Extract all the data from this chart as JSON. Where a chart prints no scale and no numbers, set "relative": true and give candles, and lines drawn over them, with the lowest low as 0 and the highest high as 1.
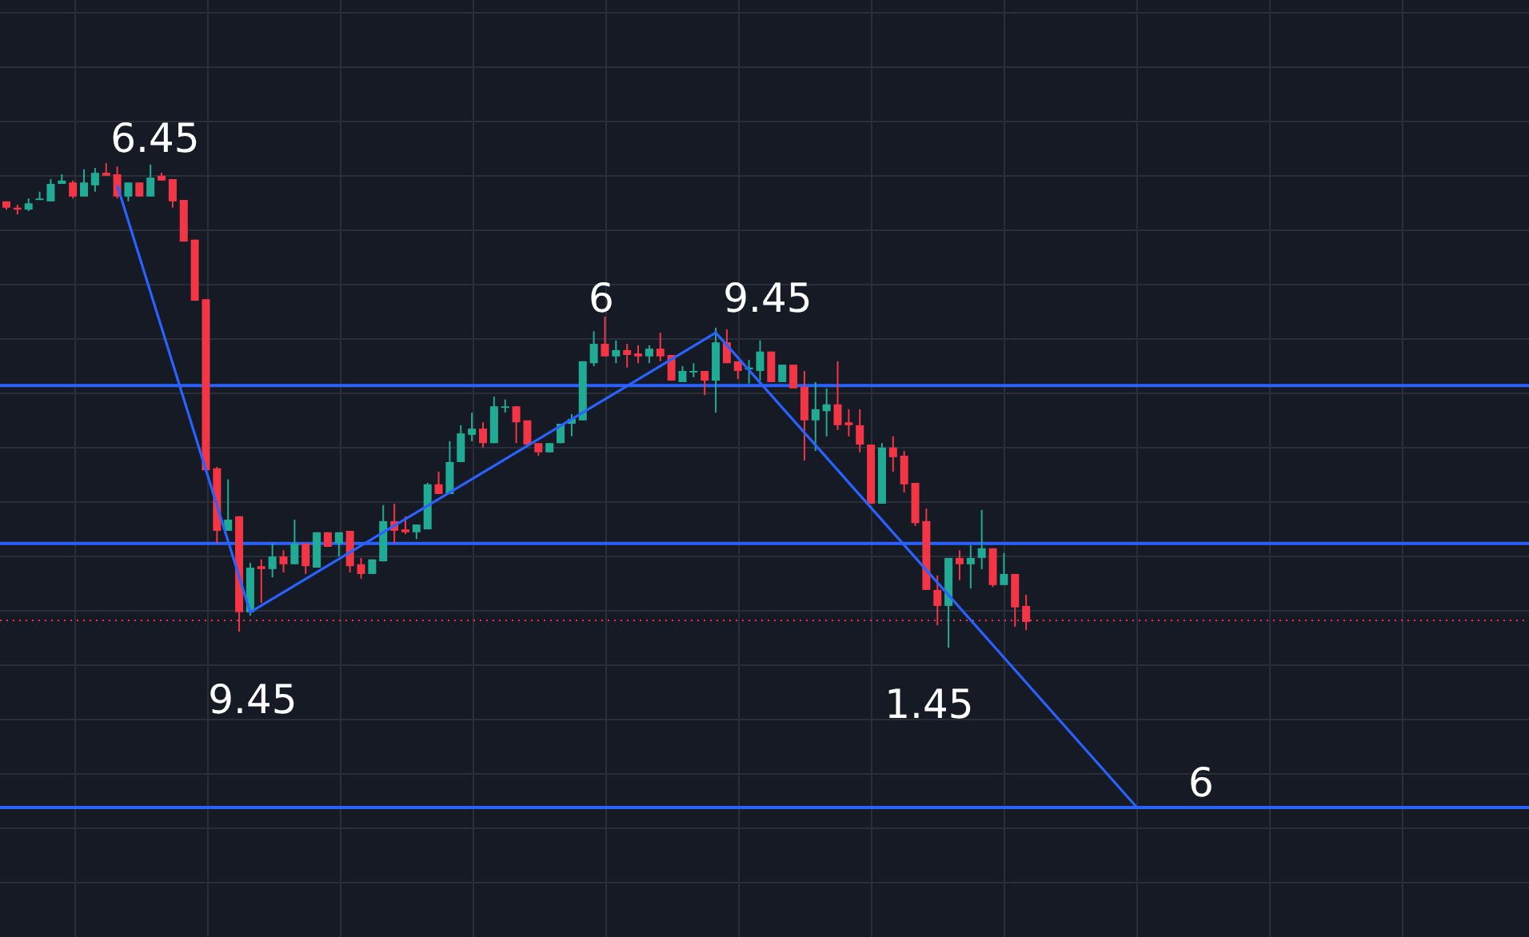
{
  "chart_data": {
    "type": "candlestick",
    "relative": true,
    "grid": true,
    "categories": [
      null,
      null,
      null,
      null,
      null,
      null,
      null,
      null,
      null,
      null,
      null,
      null,
      null,
      null,
      null,
      null,
      null,
      null,
      null,
      null,
      null,
      null,
      null,
      null,
      null,
      null,
      null,
      null,
      null,
      null,
      null,
      null,
      null,
      null,
      null,
      null,
      null,
      null,
      null,
      null,
      null,
      null,
      null,
      null,
      null,
      null,
      null,
      null,
      null,
      null,
      null,
      null,
      null,
      null,
      null,
      null,
      null,
      null,
      null,
      null,
      null,
      null,
      null,
      null,
      null,
      null,
      null,
      null,
      null,
      null,
      null,
      null,
      null,
      null,
      null,
      null,
      null,
      null,
      null,
      null,
      null,
      null,
      null,
      null,
      null,
      null,
      null,
      null,
      null,
      null,
      null,
      null,
      null,
      null,
      null,
      null,
      null,
      null,
      null,
      null,
      null,
      null,
      null,
      null,
      null,
      null,
      null,
      null,
      null,
      null,
      null,
      null,
      null,
      null,
      null,
      null,
      null,
      null,
      null,
      null,
      null,
      null,
      null,
      null,
      null,
      null,
      null,
      null,
      null,
      null,
      null,
      null,
      null,
      null,
      null,
      null,
      null
    ],
    "ohlc": [
      [
        0.921,
        0.921,
        0.904,
        0.908
      ],
      [
        0.908,
        0.914,
        0.894,
        0.904
      ],
      [
        0.904,
        0.927,
        0.901,
        0.917
      ],
      [
        0.924,
        0.941,
        0.924,
        0.927
      ],
      [
        0.921,
        0.967,
        0.921,
        0.957
      ],
      [
        0.957,
        0.977,
        0.957,
        0.964
      ],
      [
        0.96,
        0.964,
        0.927,
        0.931
      ],
      [
        0.931,
        0.987,
        0.931,
        0.96
      ],
      [
        0.954,
        0.99,
        0.941,
        0.98
      ],
      [
        0.98,
        1,
        0.974,
        0.974
      ],
      [
        0.977,
        0.993,
        0.927,
        0.931
      ],
      [
        0.931,
        0.96,
        0.921,
        0.96
      ],
      [
        0.96,
        0.96,
        0.931,
        0.931
      ],
      [
        0.931,
        0.997,
        0.931,
        0.97
      ],
      [
        0.974,
        0.98,
        0.964,
        0.964
      ],
      [
        0.967,
        0.967,
        0.908,
        0.921
      ],
      [
        0.924,
        0.924,
        0.838,
        0.838
      ],
      [
        0.842,
        0.842,
        0.716,
        0.716
      ],
      [
        0.719,
        0.719,
        0.366,
        0.366
      ],
      [
        0.37,
        0.373,
        0.215,
        0.241
      ],
      [
        0.241,
        0.347,
        0.241,
        0.264
      ],
      [
        0.271,
        0.271,
        0.033,
        0.073
      ],
      [
        0.073,
        0.175,
        0.066,
        0.165
      ],
      [
        0.168,
        0.182,
        0.092,
        0.162
      ],
      [
        0.162,
        0.215,
        0.145,
        0.188
      ],
      [
        0.188,
        0.201,
        0.155,
        0.172
      ],
      [
        0.172,
        0.264,
        0.172,
        0.215
      ],
      [
        0.215,
        0.215,
        0.152,
        0.168
      ],
      [
        0.165,
        0.238,
        0.165,
        0.238
      ],
      [
        0.238,
        0.238,
        0.208,
        0.208
      ],
      [
        0.215,
        0.238,
        0.188,
        0.238
      ],
      [
        0.241,
        0.241,
        0.155,
        0.168
      ],
      [
        0.172,
        0.185,
        0.142,
        0.152
      ],
      [
        0.152,
        0.182,
        0.152,
        0.182
      ],
      [
        0.178,
        0.294,
        0.178,
        0.261
      ],
      [
        0.261,
        0.297,
        0.215,
        0.241
      ],
      [
        0.244,
        0.271,
        0.234,
        0.238
      ],
      [
        0.238,
        0.254,
        0.224,
        0.254
      ],
      [
        0.244,
        0.34,
        0.244,
        0.337
      ],
      [
        0.337,
        0.363,
        0.317,
        0.317
      ],
      [
        0.317,
        0.426,
        0.317,
        0.383
      ],
      [
        0.383,
        0.459,
        0.383,
        0.442
      ],
      [
        0.439,
        0.485,
        0.426,
        0.452
      ],
      [
        0.452,
        0.465,
        0.413,
        0.422
      ],
      [
        0.422,
        0.518,
        0.422,
        0.498
      ],
      [
        0.495,
        0.512,
        0.485,
        0.498
      ],
      [
        0.498,
        0.498,
        0.422,
        0.465
      ],
      [
        0.469,
        0.469,
        0.419,
        0.419
      ],
      [
        0.422,
        0.422,
        0.396,
        0.403
      ],
      [
        0.403,
        0.422,
        0.403,
        0.422
      ],
      [
        0.422,
        0.462,
        0.422,
        0.462
      ],
      [
        0.462,
        0.482,
        0.436,
        0.472
      ],
      [
        0.469,
        0.591,
        0.469,
        0.591
      ],
      [
        0.587,
        0.653,
        0.581,
        0.627
      ],
      [
        0.627,
        0.683,
        0.601,
        0.601
      ],
      [
        0.601,
        0.634,
        0.587,
        0.614
      ],
      [
        0.614,
        0.627,
        0.578,
        0.604
      ],
      [
        0.607,
        0.624,
        0.587,
        0.601
      ],
      [
        0.601,
        0.624,
        0.587,
        0.617
      ],
      [
        0.617,
        0.65,
        0.591,
        0.601
      ],
      [
        0.604,
        0.604,
        0.551,
        0.551
      ],
      [
        0.548,
        0.581,
        0.548,
        0.571
      ],
      [
        0.568,
        0.587,
        0.558,
        0.571
      ],
      [
        0.571,
        0.571,
        0.521,
        0.551
      ],
      [
        0.551,
        0.66,
        0.485,
        0.63
      ],
      [
        0.63,
        0.657,
        0.587,
        0.587
      ],
      [
        0.591,
        0.591,
        0.554,
        0.571
      ],
      [
        0.574,
        0.594,
        0.545,
        0.578
      ],
      [
        0.571,
        0.634,
        0.551,
        0.611
      ],
      [
        0.611,
        0.611,
        0.548,
        0.548
      ],
      [
        0.548,
        0.584,
        0.548,
        0.584
      ],
      [
        0.584,
        0.584,
        0.535,
        0.535
      ],
      [
        0.538,
        0.571,
        0.386,
        0.469
      ],
      [
        0.469,
        0.548,
        0.406,
        0.492
      ],
      [
        0.488,
        0.535,
        0.436,
        0.502
      ],
      [
        0.502,
        0.591,
        0.449,
        0.459
      ],
      [
        0.465,
        0.492,
        0.436,
        0.459
      ],
      [
        0.459,
        0.492,
        0.403,
        0.419
      ],
      [
        0.419,
        0.419,
        0.297,
        0.297
      ],
      [
        0.297,
        0.422,
        0.297,
        0.413
      ],
      [
        0.413,
        0.436,
        0.363,
        0.393
      ],
      [
        0.396,
        0.406,
        0.32,
        0.337
      ],
      [
        0.34,
        0.34,
        0.251,
        0.257
      ],
      [
        0.261,
        0.287,
        0.119,
        0.119
      ],
      [
        0.119,
        0.149,
        0.046,
        0.086
      ],
      [
        0.086,
        0.185,
        0,
        0.185
      ],
      [
        0.185,
        0.201,
        0.139,
        0.172
      ],
      [
        0.172,
        0.211,
        0.122,
        0.185
      ],
      [
        0.185,
        0.284,
        0.162,
        0.205
      ],
      [
        0.205,
        0.205,
        0.125,
        0.129
      ],
      [
        0.129,
        0.195,
        0.129,
        0.152
      ],
      [
        0.152,
        0.152,
        0.043,
        0.083
      ],
      [
        0.086,
        0.109,
        0.036,
        0.053
      ],
      null,
      null,
      null,
      null,
      null,
      null,
      null,
      null,
      null,
      null,
      null,
      null,
      null,
      null,
      null,
      null,
      null,
      null,
      null,
      null,
      null,
      null,
      null,
      null,
      null,
      null,
      null,
      null,
      null,
      null,
      null,
      null,
      null,
      null,
      null,
      null,
      null,
      null,
      null,
      null,
      null,
      null,
      null,
      null
    ],
    "series": [
      {
        "type": "line",
        "color": "#2962ff",
        "values": [
          null,
          null,
          null,
          null,
          null,
          null,
          null,
          null,
          null,
          null,
          0.954,
          null,
          null,
          null,
          null,
          null,
          null,
          null,
          null,
          null,
          null,
          null,
          0.073,
          null,
          null,
          null,
          null,
          null,
          null,
          null,
          null,
          null,
          null,
          null,
          null,
          null,
          null,
          null,
          null,
          null,
          null,
          null,
          null,
          null,
          null,
          null,
          null,
          null,
          null,
          null,
          null,
          null,
          null,
          null,
          null,
          null,
          null,
          null,
          null,
          null,
          null,
          null,
          null,
          null,
          0.65,
          null,
          null,
          null,
          null,
          null,
          null,
          null,
          null,
          null,
          null,
          null,
          null,
          null,
          null,
          null,
          null,
          null,
          null,
          null,
          null,
          null,
          null,
          null,
          null,
          null,
          null,
          null,
          null,
          null,
          null,
          null,
          null,
          null,
          null,
          null,
          null,
          null,
          -0.33,
          null,
          null,
          null,
          null,
          null,
          null,
          null,
          null,
          null,
          null,
          null,
          null,
          null,
          null,
          null,
          null,
          null,
          null,
          null,
          null,
          null,
          null,
          null,
          null,
          null,
          null,
          null,
          null,
          null,
          null,
          null,
          null,
          null,
          null
        ]
      }
    ],
    "ref_lines": [
      {
        "axis": "y",
        "value": 0.541,
        "color": "#2962ff",
        "line_style": "solid"
      },
      {
        "axis": "y",
        "value": 0.215,
        "color": "#2962ff",
        "line_style": "solid"
      },
      {
        "axis": "y",
        "value": -0.33,
        "color": "#2962ff",
        "line_style": "solid"
      },
      {
        "axis": "y",
        "value": 0.056,
        "color": "#f23645",
        "line_style": "dotted"
      }
    ],
    "annotations": [
      "6.45",
      "9.45",
      "6",
      "9.45",
      "1.45",
      "6"
    ]
  }
}
